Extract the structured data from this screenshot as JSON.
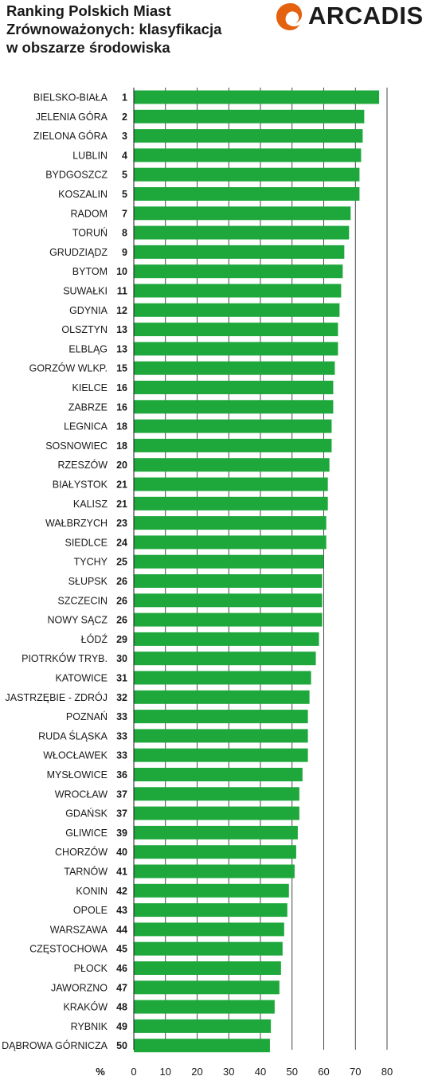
{
  "header": {
    "title_lines": [
      "Ranking Polskich Miast",
      "Zrównoważonych: klasyfikacja",
      "w obszarze środowiska"
    ]
  },
  "logo": {
    "text": "ARCADIS",
    "icon": "arcadis-swirl-icon",
    "icon_color": "#e4610f"
  },
  "colors": {
    "bar": "#1ea83c",
    "grid": "#1a1a1a"
  },
  "chart_data": {
    "type": "bar",
    "orientation": "horizontal",
    "unit_label": "%",
    "xlim": [
      0,
      80
    ],
    "x_ticks": [
      0,
      10,
      20,
      30,
      40,
      50,
      60,
      70,
      80
    ],
    "grid": "vertical lines at every 10",
    "categories": [
      "BIELSKO-BIAŁA",
      "JELENIA GÓRA",
      "ZIELONA GÓRA",
      "LUBLIN",
      "BYDGOSZCZ",
      "KOSZALIN",
      "RADOM",
      "TORUŃ",
      "GRUDZIĄDZ",
      "BYTOM",
      "SUWAŁKI",
      "GDYNIA",
      "OLSZTYN",
      "ELBLĄG",
      "GORZÓW WLKP.",
      "KIELCE",
      "ZABRZE",
      "LEGNICA",
      "SOSNOWIEC",
      "RZESZÓW",
      "BIAŁYSTOK",
      "KALISZ",
      "WAŁBRZYCH",
      "SIEDLCE",
      "TYCHY",
      "SŁUPSK",
      "SZCZECIN",
      "NOWY SĄCZ",
      "ŁÓDŹ",
      "PIOTRKÓW TRYB.",
      "KATOWICE",
      "JASTRZĘBIE - ZDRÓJ",
      "POZNAŃ",
      "RUDA ŚLĄSKA",
      "WŁOCŁAWEK",
      "MYSŁOWICE",
      "WROCŁAW",
      "GDAŃSK",
      "GLIWICE",
      "CHORZÓW",
      "TARNÓW",
      "KONIN",
      "OPOLE",
      "WARSZAWA",
      "CZĘSTOCHOWA",
      "PŁOCK",
      "JAWORZNO",
      "KRAKÓW",
      "RYBNIK",
      "DĄBROWA GÓRNICZA"
    ],
    "ranks": [
      "1",
      "2",
      "3",
      "4",
      "5",
      "5",
      "7",
      "8",
      "9",
      "10",
      "11",
      "12",
      "13",
      "13",
      "15",
      "16",
      "16",
      "18",
      "18",
      "20",
      "21",
      "21",
      "23",
      "24",
      "25",
      "26",
      "26",
      "26",
      "29",
      "30",
      "31",
      "32",
      "33",
      "33",
      "33",
      "36",
      "37",
      "37",
      "39",
      "40",
      "41",
      "42",
      "43",
      "44",
      "45",
      "46",
      "47",
      "48",
      "49",
      "50"
    ],
    "values": [
      77.5,
      72.8,
      72.3,
      71.8,
      71.3,
      71.3,
      68.5,
      68.0,
      66.5,
      66.0,
      65.5,
      65.0,
      64.5,
      64.5,
      63.5,
      63.0,
      63.0,
      62.5,
      62.5,
      61.8,
      61.3,
      61.3,
      60.8,
      60.8,
      60.0,
      59.5,
      59.5,
      59.5,
      58.5,
      57.5,
      56.0,
      55.5,
      55.0,
      55.0,
      55.0,
      53.3,
      52.3,
      52.3,
      51.8,
      51.3,
      50.8,
      49.0,
      48.5,
      47.5,
      47.0,
      46.5,
      46.0,
      44.5,
      43.3,
      43.0
    ]
  }
}
